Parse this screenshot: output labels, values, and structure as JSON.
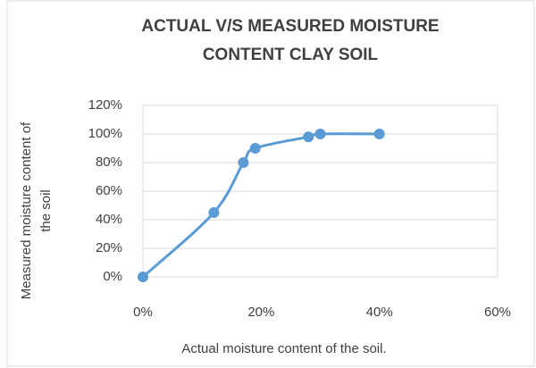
{
  "chart_data": {
    "type": "scatter",
    "title": [
      "ACTUAL V/S MEASURED MOISTURE",
      "CONTENT CLAY SOIL"
    ],
    "x_label": "Actual moisture content of the soil.",
    "y_label": [
      "Measured moisture content of",
      "the soil"
    ],
    "smooth": true,
    "color": "#5b9bd5",
    "x": [
      0,
      12,
      17,
      19,
      28,
      30,
      40
    ],
    "values": [
      0,
      45,
      80,
      90,
      98,
      100,
      100
    ],
    "xlim": [
      0,
      60
    ],
    "xticks": [
      {
        "value": 0,
        "label": "0%"
      },
      {
        "value": 20,
        "label": "20%"
      },
      {
        "value": 40,
        "label": "40%"
      },
      {
        "value": 60,
        "label": "60%"
      }
    ],
    "ylim": [
      0,
      120
    ],
    "yticks": [
      {
        "value": 0,
        "label": "0%"
      },
      {
        "value": 20,
        "label": "20%"
      },
      {
        "value": 40,
        "label": "40%"
      },
      {
        "value": 60,
        "label": "60%"
      },
      {
        "value": 80,
        "label": "80%"
      },
      {
        "value": 100,
        "label": "100%"
      },
      {
        "value": 120,
        "label": "120%"
      }
    ],
    "grid": true
  }
}
